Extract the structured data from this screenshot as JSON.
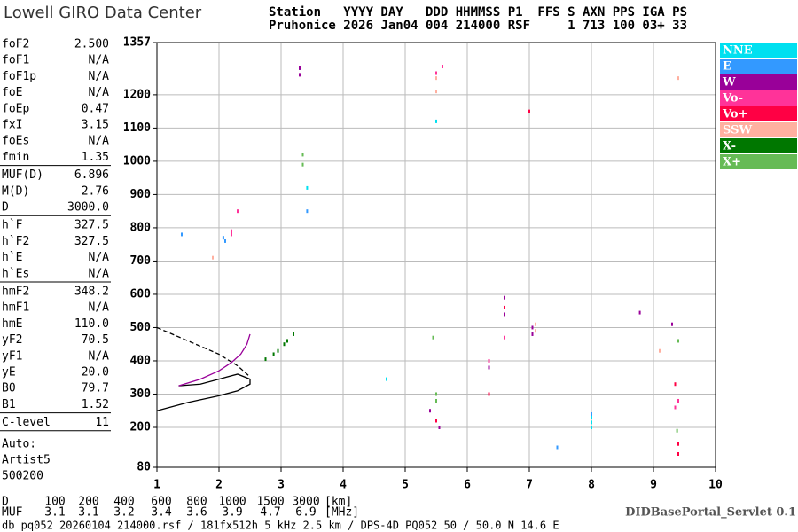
{
  "header": {
    "logo": "Lowell GIRO Data Center",
    "line1": "Station   YYYY DAY   DDD HHMMSS P1  FFS S AXN PPS IGA PS",
    "line2": "Pruhonice 2026 Jan04 004 214000 RSF     1 713 100 03+ 33"
  },
  "params": [
    [
      {
        "label": "foF2",
        "value": "2.500"
      },
      {
        "label": "foF1",
        "value": "N/A"
      },
      {
        "label": "foF1p",
        "value": "N/A"
      },
      {
        "label": "foE",
        "value": "N/A"
      },
      {
        "label": "foEp",
        "value": "0.47"
      },
      {
        "label": "fxI",
        "value": "3.15"
      },
      {
        "label": "foEs",
        "value": "N/A"
      },
      {
        "label": "fmin",
        "value": "1.35"
      }
    ],
    [
      {
        "label": "MUF(D)",
        "value": "6.896"
      },
      {
        "label": "M(D)",
        "value": "2.76"
      },
      {
        "label": "D",
        "value": "3000.0"
      }
    ],
    [
      {
        "label": "h`F",
        "value": "327.5"
      },
      {
        "label": "h`F2",
        "value": "327.5"
      },
      {
        "label": "h`E",
        "value": "N/A"
      },
      {
        "label": "h`Es",
        "value": "N/A"
      }
    ],
    [
      {
        "label": "hmF2",
        "value": "348.2"
      },
      {
        "label": "hmF1",
        "value": "N/A"
      },
      {
        "label": "hmE",
        "value": "110.0"
      },
      {
        "label": "yF2",
        "value": "70.5"
      },
      {
        "label": "yF1",
        "value": "N/A"
      },
      {
        "label": "yE",
        "value": "20.0"
      },
      {
        "label": "B0",
        "value": "79.7"
      },
      {
        "label": "B1",
        "value": "1.52"
      }
    ],
    [
      {
        "label": "C-level",
        "value": "11"
      }
    ]
  ],
  "auto": [
    "Auto:",
    "Artist5",
    "500200"
  ],
  "chart_data": {
    "type": "scatter",
    "xlim": [
      1,
      10
    ],
    "xticks": [
      1,
      2,
      3,
      4,
      5,
      6,
      7,
      8,
      9,
      10
    ],
    "ylim": [
      80,
      1357
    ],
    "yticks": [
      80,
      200,
      300,
      400,
      500,
      600,
      700,
      800,
      900,
      1000,
      1100,
      1200,
      1357
    ],
    "grid": true,
    "series": [
      {
        "name": "NNE",
        "color": "#00e0f0",
        "x": [
          8.0,
          8.0,
          8.0,
          5.5,
          4.7,
          3.42
        ],
        "values": [
          230,
          215,
          200,
          1120,
          345,
          920
        ]
      },
      {
        "name": "E",
        "color": "#3399ff",
        "x": [
          1.4,
          2.07,
          2.1,
          7.45,
          8.0,
          3.3,
          3.42
        ],
        "values": [
          780,
          770,
          760,
          140,
          240,
          1280,
          850
        ]
      },
      {
        "name": "W",
        "color": "#990099",
        "x": [
          3.3,
          3.3,
          6.6,
          6.6,
          6.6,
          7.05,
          7.05,
          5.55,
          5.4,
          6.35,
          8.78,
          9.3
        ],
        "values": [
          1280,
          1260,
          590,
          560,
          540,
          500,
          480,
          200,
          250,
          380,
          545,
          510
        ]
      },
      {
        "name": "Vo-",
        "color": "#ff3399",
        "x": [
          2.2,
          2.2,
          2.3,
          5.5,
          5.6,
          6.6,
          6.35,
          9.4,
          9.35
        ],
        "values": [
          790,
          780,
          850,
          1265,
          1285,
          470,
          400,
          280,
          260
        ]
      },
      {
        "name": "Vo+",
        "color": "#ff0044",
        "x": [
          7.0,
          5.5,
          6.6,
          6.35,
          9.35,
          9.4,
          9.4
        ],
        "values": [
          1150,
          220,
          560,
          300,
          330,
          150,
          120
        ]
      },
      {
        "name": "SSW",
        "color": "#ffb0a0",
        "x": [
          5.5,
          5.5,
          7.1,
          7.1,
          9.1,
          9.4,
          1.9
        ],
        "values": [
          1250,
          1210,
          510,
          490,
          430,
          1250,
          710
        ]
      },
      {
        "name": "X-",
        "color": "#007700",
        "x": [
          2.88,
          2.95,
          3.05,
          3.1,
          3.2,
          2.75
        ],
        "values": [
          420,
          430,
          450,
          460,
          480,
          405
        ]
      },
      {
        "name": "X+",
        "color": "#66bb55",
        "x": [
          5.5,
          5.5,
          5.45,
          9.4,
          9.38,
          3.35,
          3.35
        ],
        "values": [
          300,
          280,
          470,
          460,
          190,
          1020,
          990
        ]
      }
    ],
    "lines": [
      {
        "style": "solid",
        "color": "#000000",
        "x": [
          1,
          1.5,
          2,
          2.3,
          2.5,
          2.5,
          2.3,
          2,
          1.7,
          1.35
        ],
        "values": [
          250,
          275,
          295,
          310,
          330,
          345,
          360,
          345,
          330,
          325
        ]
      },
      {
        "style": "dashed",
        "color": "#000000",
        "x": [
          1,
          1.5,
          2,
          2.3,
          2.5
        ],
        "values": [
          500,
          460,
          420,
          385,
          352
        ]
      },
      {
        "style": "solid",
        "color": "#990099",
        "x": [
          1.35,
          1.7,
          2.0,
          2.2,
          2.35,
          2.45,
          2.5
        ],
        "values": [
          325,
          345,
          370,
          395,
          420,
          450,
          480
        ]
      }
    ]
  },
  "muf_table": {
    "d_label": "D",
    "distances": [
      100,
      200,
      400,
      600,
      800,
      1000,
      1500,
      3000
    ],
    "d_unit": "[km]",
    "muf_label": "MUF",
    "muf": [
      "3.1",
      "3.1",
      "3.2",
      "3.4",
      "3.6",
      "3.9",
      "4.7",
      "6.9"
    ],
    "muf_unit": "[MHz]"
  },
  "footer": "db pq052 20260104 214000.rsf / 181fx512h 5 kHz 2.5 km / DPS-4D PQ052 50 / 50.0 N 14.6 E",
  "servlet": "DIDBasePortal_Servlet 0.1"
}
